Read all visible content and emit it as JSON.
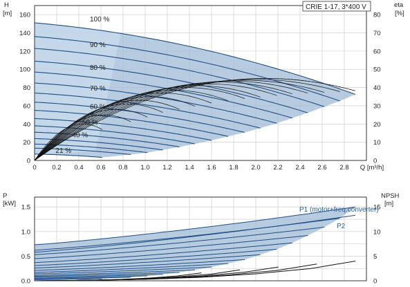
{
  "chart_data": [
    {
      "type": "line",
      "title": "CRIE 1-17, 3*400 V",
      "xlabel": "Q [m³/h]",
      "x_axis": {
        "label": "Q [m³/h]",
        "range": [
          0,
          3.0
        ],
        "ticks": [
          "0",
          "0.2",
          "0.4",
          "0.6",
          "0.8",
          "1.0",
          "1.2",
          "1.4",
          "1.6",
          "1.8",
          "2.0",
          "2.2",
          "2.4",
          "2.6",
          "2.8"
        ]
      },
      "y_left": {
        "label_top": "H",
        "label_unit": "[m]",
        "range": [
          0,
          170
        ],
        "ticks": [
          "0",
          "20",
          "40",
          "60",
          "80",
          "100",
          "120",
          "140",
          "160"
        ]
      },
      "y_right": {
        "label_top": "eta",
        "label_unit": "[%]",
        "range": [
          0,
          85
        ],
        "ticks": [
          "0",
          "10",
          "20",
          "30",
          "40",
          "50",
          "60",
          "70",
          "80"
        ]
      },
      "grid": true,
      "speed_labels": [
        {
          "text": "100 %",
          "q": 0.5,
          "h": 151
        },
        {
          "text": "90 %",
          "q": 0.5,
          "h": 123
        },
        {
          "text": "80 %",
          "q": 0.5,
          "h": 98
        },
        {
          "text": "70 %",
          "q": 0.5,
          "h": 75
        },
        {
          "text": "60 %",
          "q": 0.5,
          "h": 55
        },
        {
          "text": "50 %",
          "q": 0.43,
          "h": 38
        },
        {
          "text": "40 %",
          "q": 0.34,
          "h": 24
        },
        {
          "text": "21 %",
          "q": 0.19,
          "h": 7
        }
      ],
      "speed_curves": [
        {
          "speed": 100,
          "h0": 151,
          "qmax": 2.9
        },
        {
          "speed": 95,
          "h0": 136,
          "qmax": 2.76
        },
        {
          "speed": 90,
          "h0": 123,
          "qmax": 2.62
        },
        {
          "speed": 85,
          "h0": 109,
          "qmax": 2.47
        },
        {
          "speed": 80,
          "h0": 97,
          "qmax": 2.33
        },
        {
          "speed": 75,
          "h0": 85,
          "qmax": 2.19
        },
        {
          "speed": 70,
          "h0": 74,
          "qmax": 2.04
        },
        {
          "speed": 65,
          "h0": 64,
          "qmax": 1.9
        },
        {
          "speed": 60,
          "h0": 55,
          "qmax": 1.75
        },
        {
          "speed": 55,
          "h0": 46,
          "qmax": 1.6
        },
        {
          "speed": 50,
          "h0": 38,
          "qmax": 1.45
        },
        {
          "speed": 45,
          "h0": 31,
          "qmax": 1.31
        },
        {
          "speed": 40,
          "h0": 24,
          "qmax": 1.16
        },
        {
          "speed": 35,
          "h0": 18,
          "qmax": 1.02
        },
        {
          "speed": 30,
          "h0": 13.5,
          "qmax": 0.87
        },
        {
          "speed": 21,
          "h0": 7,
          "qmax": 0.61
        }
      ],
      "efficiency_curves_eta_peak": [
        45,
        44.5,
        44,
        43.5,
        43,
        42,
        41,
        40,
        38.5,
        37,
        35,
        33,
        31,
        28,
        25,
        20
      ]
    },
    {
      "type": "line",
      "xlabel": "Q [m³/h]",
      "x_axis": {
        "range": [
          0,
          3.0
        ]
      },
      "y_left": {
        "label_top": "P",
        "label_unit": "[kW]",
        "range": [
          0,
          1.7
        ],
        "ticks": [
          "0.0",
          "0.5",
          "1.0",
          "1.5"
        ]
      },
      "y_right": {
        "label_top": "NPSH",
        "label_unit": "[m]",
        "range": [
          0,
          17
        ],
        "ticks": [
          "0",
          "5",
          "10",
          "15"
        ]
      },
      "grid": true,
      "series_labels": [
        "P1 (motor+freq.converter)",
        "P2"
      ],
      "p1_curves": [
        {
          "speed": 100,
          "p0": 0.73,
          "p_end": 1.5
        },
        {
          "speed": 95,
          "p0": 0.62,
          "p_end": 1.27
        },
        {
          "speed": 90,
          "p0": 0.53,
          "p_end": 1.09
        },
        {
          "speed": 85,
          "p0": 0.45,
          "p_end": 0.92
        },
        {
          "speed": 80,
          "p0": 0.37,
          "p_end": 0.77
        },
        {
          "speed": 75,
          "p0": 0.31,
          "p_end": 0.64
        },
        {
          "speed": 70,
          "p0": 0.26,
          "p_end": 0.53
        },
        {
          "speed": 65,
          "p0": 0.21,
          "p_end": 0.43
        },
        {
          "speed": 60,
          "p0": 0.17,
          "p_end": 0.35
        },
        {
          "speed": 55,
          "p0": 0.14,
          "p_end": 0.28
        },
        {
          "speed": 50,
          "p0": 0.11,
          "p_end": 0.22
        },
        {
          "speed": 45,
          "p0": 0.09,
          "p_end": 0.17
        },
        {
          "speed": 40,
          "p0": 0.07,
          "p_end": 0.13
        },
        {
          "speed": 35,
          "p0": 0.05,
          "p_end": 0.1
        },
        {
          "speed": 30,
          "p0": 0.04,
          "p_end": 0.07
        },
        {
          "speed": 21,
          "p0": 0.02,
          "p_end": 0.04
        }
      ],
      "p2_curve_100": {
        "p0": 0.58,
        "p_end": 1.33
      },
      "npsh_curve": {
        "q": [
          0.0,
          0.5,
          1.0,
          1.5,
          2.0,
          2.5,
          2.9
        ],
        "npsh": [
          0.0,
          0.1,
          0.3,
          0.7,
          1.4,
          2.5,
          4.0
        ]
      }
    }
  ],
  "colors": {
    "curve_blue": "#1f4e84",
    "shade": "#9fbbd6",
    "shade_light": "#cfe0ee",
    "grid": "#c8c8c8",
    "axis": "#333333",
    "eta": "#111111"
  }
}
